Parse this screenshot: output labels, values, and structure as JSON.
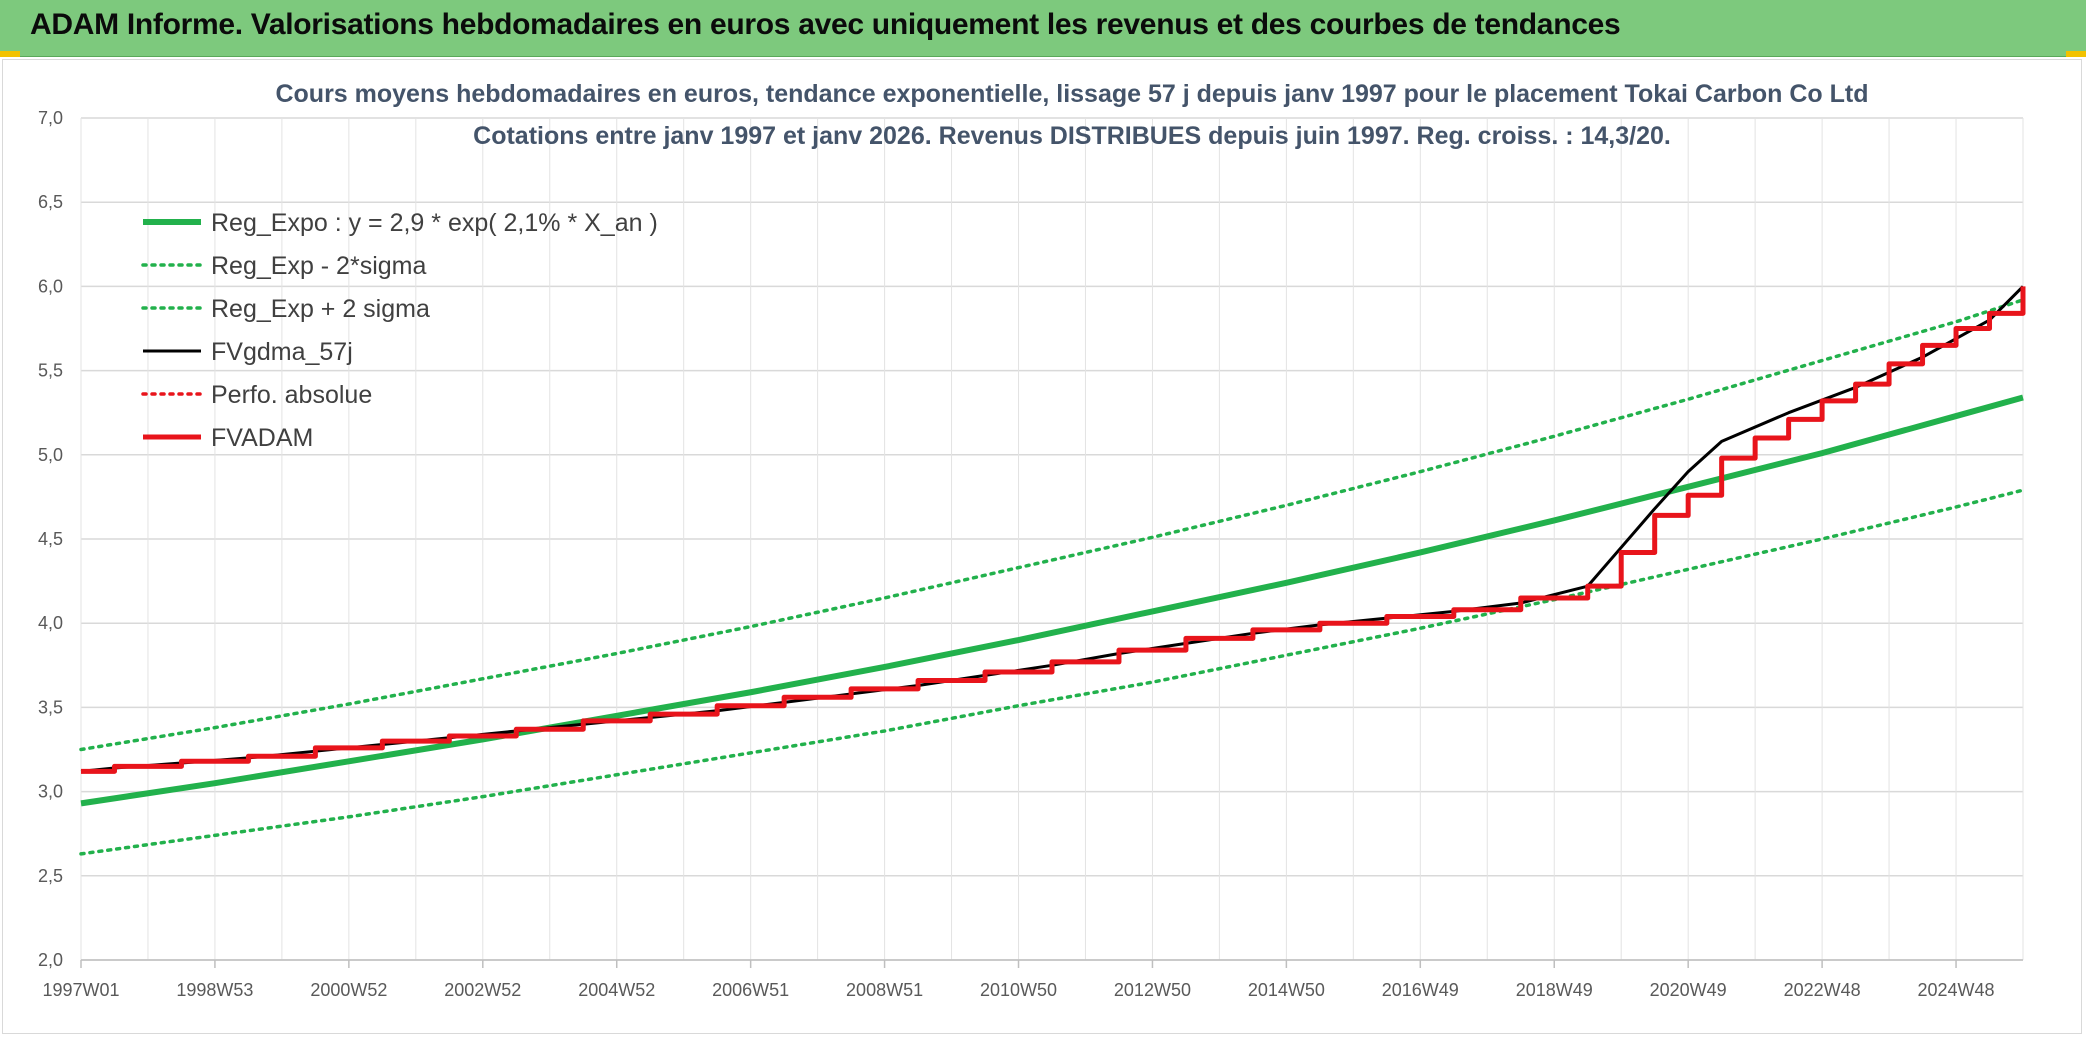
{
  "banner": {
    "title": "ADAM Informe. Valorisations hebdomadaires en euros avec uniquement les revenus et des courbes de tendances"
  },
  "colors": {
    "banner_bg": "#7dc97d",
    "green_trend": "#22b14c",
    "red_series": "#e8141b",
    "black_series": "#000000",
    "grid": "#d9d9d9",
    "title": "#44546a"
  },
  "chart_data": {
    "type": "line",
    "title_line1": "Cours moyens hebdomadaires en euros, tendance exponentielle, lissage 57 j depuis janv 1997 pour le placement Tokai Carbon Co Ltd",
    "title_line2": "Cotations entre janv 1997 et janv 2026. Revenus DISTRIBUES depuis juin 1997. Reg. croiss. : 14,3/20.",
    "xlabel": "",
    "ylabel": "",
    "ylim": [
      2.0,
      7.0
    ],
    "xlim": [
      1997.0,
      2026.0
    ],
    "y_ticks": [
      "2,0",
      "2,5",
      "3,0",
      "3,5",
      "4,0",
      "4,5",
      "5,0",
      "5,5",
      "6,0",
      "6,5",
      "7,0"
    ],
    "x_ticks": [
      {
        "label": "1997W01",
        "year": 1997.0
      },
      {
        "label": "1998W53",
        "year": 1999.0
      },
      {
        "label": "2000W52",
        "year": 2001.0
      },
      {
        "label": "2002W52",
        "year": 2003.0
      },
      {
        "label": "2004W52",
        "year": 2005.0
      },
      {
        "label": "2006W51",
        "year": 2007.0
      },
      {
        "label": "2008W51",
        "year": 2009.0
      },
      {
        "label": "2010W50",
        "year": 2011.0
      },
      {
        "label": "2012W50",
        "year": 2013.0
      },
      {
        "label": "2014W50",
        "year": 2015.0
      },
      {
        "label": "2016W49",
        "year": 2017.0
      },
      {
        "label": "2018W49",
        "year": 2019.0
      },
      {
        "label": "2020W49",
        "year": 2021.0
      },
      {
        "label": "2022W48",
        "year": 2023.0
      },
      {
        "label": "2024W48",
        "year": 2025.0
      }
    ],
    "grid": true,
    "legend_position": "top-left",
    "series": [
      {
        "name": "Reg_Expo : y = 2,9 * exp( 2,1% *  X_an )",
        "style": "solid-thick",
        "color": "#22b14c",
        "x": [
          1997,
          1999,
          2001,
          2003,
          2005,
          2007,
          2009,
          2011,
          2013,
          2015,
          2017,
          2019,
          2021,
          2023,
          2025,
          2026
        ],
        "values": [
          2.93,
          3.05,
          3.18,
          3.31,
          3.45,
          3.59,
          3.74,
          3.9,
          4.07,
          4.24,
          4.42,
          4.61,
          4.81,
          5.01,
          5.23,
          5.34
        ]
      },
      {
        "name": "Reg_Exp - 2*sigma",
        "style": "dotted",
        "color": "#22b14c",
        "x": [
          1997,
          1999,
          2001,
          2003,
          2005,
          2007,
          2009,
          2011,
          2013,
          2015,
          2017,
          2019,
          2021,
          2023,
          2025,
          2026
        ],
        "values": [
          2.63,
          2.74,
          2.85,
          2.97,
          3.1,
          3.23,
          3.36,
          3.51,
          3.65,
          3.81,
          3.97,
          4.14,
          4.32,
          4.5,
          4.69,
          4.79
        ]
      },
      {
        "name": "Reg_Exp + 2 sigma",
        "style": "dotted",
        "color": "#22b14c",
        "x": [
          1997,
          1999,
          2001,
          2003,
          2005,
          2007,
          2009,
          2011,
          2013,
          2015,
          2017,
          2019,
          2021,
          2023,
          2025,
          2026
        ],
        "values": [
          3.25,
          3.38,
          3.52,
          3.67,
          3.82,
          3.98,
          4.15,
          4.33,
          4.51,
          4.7,
          4.9,
          5.11,
          5.33,
          5.56,
          5.79,
          5.92
        ]
      },
      {
        "name": "FVgdma_57j",
        "style": "solid-thin",
        "color": "#000000",
        "x": [
          1997.0,
          1997.5,
          1998.5,
          1999.5,
          2000.5,
          2001.5,
          2002.5,
          2003.5,
          2004.5,
          2005.5,
          2006.5,
          2007.5,
          2008.5,
          2009.5,
          2010.5,
          2011.5,
          2012.5,
          2013.5,
          2014.5,
          2015.5,
          2016.5,
          2017.5,
          2018.5,
          2019.5,
          2020.0,
          2020.5,
          2021.0,
          2021.5,
          2022.5,
          2023.5,
          2024.5,
          2025.5,
          2026.0
        ],
        "values": [
          3.12,
          3.14,
          3.17,
          3.2,
          3.24,
          3.28,
          3.32,
          3.36,
          3.4,
          3.44,
          3.48,
          3.53,
          3.58,
          3.63,
          3.69,
          3.75,
          3.82,
          3.88,
          3.94,
          3.99,
          4.03,
          4.07,
          4.12,
          4.22,
          4.45,
          4.68,
          4.9,
          5.08,
          5.25,
          5.4,
          5.58,
          5.8,
          6.0
        ]
      },
      {
        "name": "Perfo. absolue",
        "style": "dotted",
        "color": "#e8141b",
        "x": [],
        "values": []
      },
      {
        "name": "FVADAM",
        "style": "step-thick",
        "color": "#e8141b",
        "x": [
          1997.0,
          1997.5,
          1998.5,
          1999.5,
          2000.5,
          2001.5,
          2002.5,
          2003.5,
          2004.5,
          2005.5,
          2006.5,
          2007.5,
          2008.5,
          2009.5,
          2010.5,
          2011.5,
          2012.5,
          2013.5,
          2014.5,
          2015.5,
          2016.5,
          2017.5,
          2018.5,
          2019.5,
          2020.0,
          2020.5,
          2021.0,
          2021.5,
          2022.0,
          2022.5,
          2023.0,
          2023.5,
          2024.0,
          2024.5,
          2025.0,
          2025.5,
          2026.0
        ],
        "values": [
          3.12,
          3.15,
          3.18,
          3.21,
          3.26,
          3.3,
          3.33,
          3.37,
          3.42,
          3.46,
          3.51,
          3.56,
          3.61,
          3.66,
          3.71,
          3.77,
          3.84,
          3.91,
          3.96,
          4.0,
          4.04,
          4.08,
          4.15,
          4.22,
          4.42,
          4.64,
          4.76,
          4.98,
          5.1,
          5.21,
          5.32,
          5.42,
          5.54,
          5.65,
          5.75,
          5.84,
          6.0
        ]
      }
    ]
  }
}
